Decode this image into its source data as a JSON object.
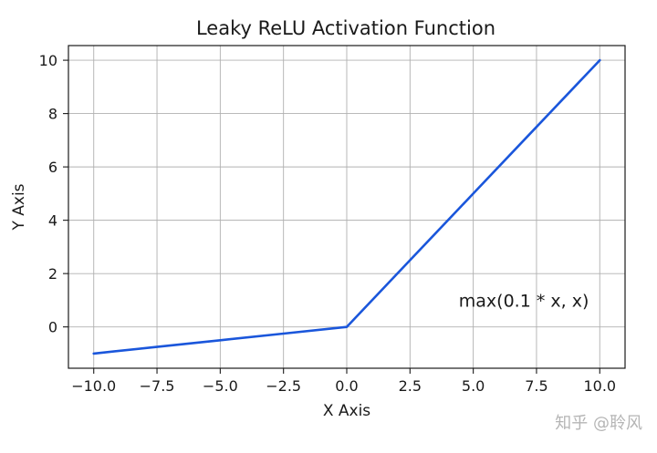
{
  "chart_data": {
    "type": "line",
    "title": "Leaky ReLU Activation Function",
    "xlabel": "X Axis",
    "ylabel": "Y Axis",
    "xlim": [
      -11,
      11
    ],
    "ylim": [
      -1.55,
      10.55
    ],
    "xticks": [
      -10,
      -7.5,
      -5,
      -2.5,
      0,
      2.5,
      5,
      7.5,
      10
    ],
    "xtick_labels": [
      "−10.0",
      "−7.5",
      "−5.0",
      "−2.5",
      "0.0",
      "2.5",
      "5.0",
      "7.5",
      "10.0"
    ],
    "yticks": [
      0,
      2,
      4,
      6,
      8,
      10
    ],
    "ytick_labels": [
      "0",
      "2",
      "4",
      "6",
      "8",
      "10"
    ],
    "grid": true,
    "series": [
      {
        "x": [
          -10,
          -7.5,
          -5,
          -2.5,
          0,
          2.5,
          5,
          7.5,
          10
        ],
        "y": [
          -1,
          -0.75,
          -0.5,
          -0.25,
          0,
          2.5,
          5,
          7.5,
          10
        ],
        "color": "#1a56db"
      }
    ],
    "annotations": [
      {
        "text": "max(0.1 * x, x)",
        "x": 7.0,
        "y": 1.0
      }
    ]
  },
  "watermark": {
    "text": "知乎 @聆风"
  }
}
